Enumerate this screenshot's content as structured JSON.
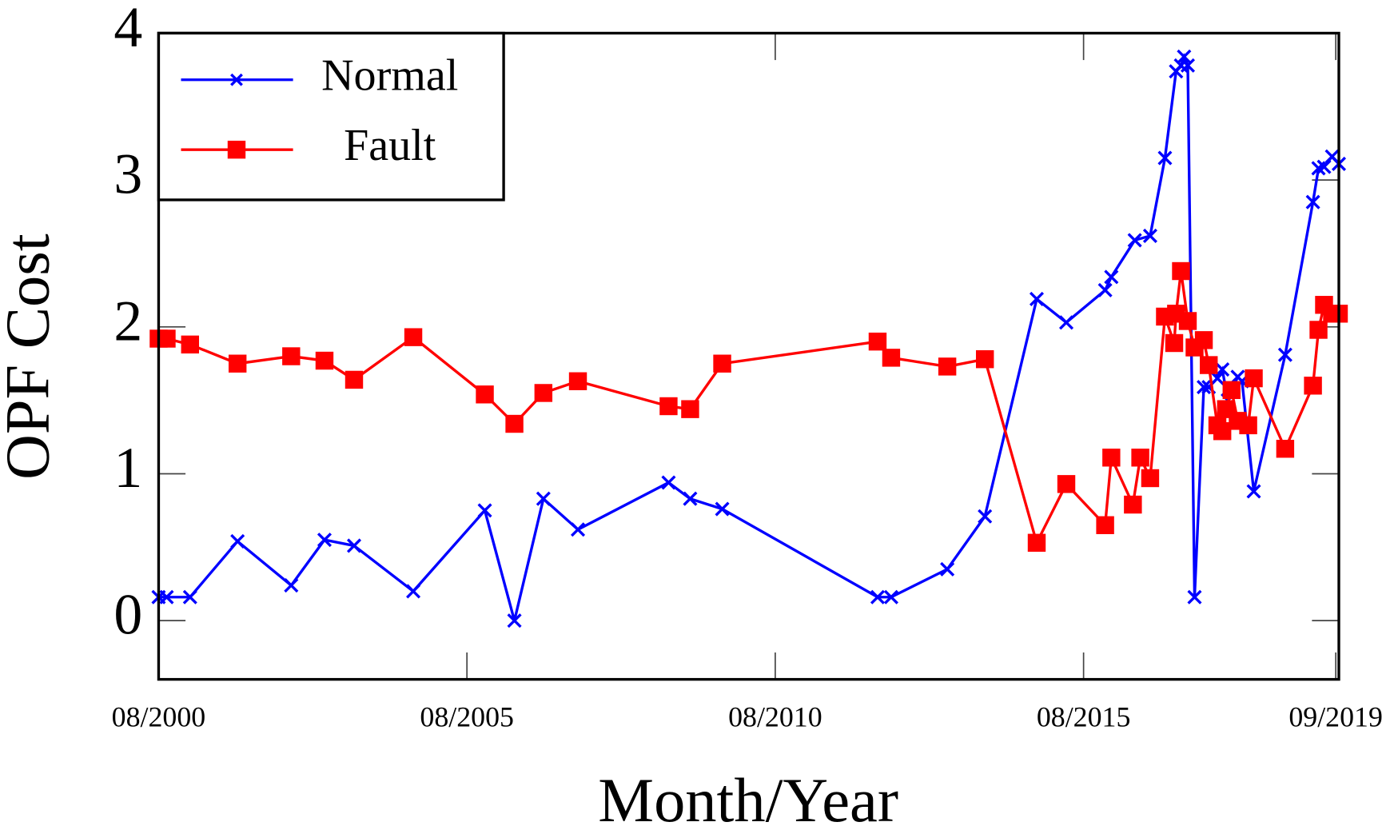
{
  "chart_data": {
    "type": "line",
    "xlabel": "Month/Year",
    "ylabel": "OPF Cost",
    "xlim": [
      2000.58,
      2019.72
    ],
    "ylim": [
      -0.4,
      4
    ],
    "xticks": [
      {
        "value": 2000.58,
        "label": "08/2000"
      },
      {
        "value": 2005.58,
        "label": "08/2005"
      },
      {
        "value": 2010.58,
        "label": "08/2010"
      },
      {
        "value": 2015.58,
        "label": "08/2015"
      },
      {
        "value": 2019.67,
        "label": "09/2019"
      }
    ],
    "yticks": [
      0,
      1,
      2,
      3,
      4
    ],
    "legend": "upper-left",
    "series": [
      {
        "name": "Normal",
        "color": "#0000ff",
        "marker": "x",
        "x": [
          2000.58,
          2000.71,
          2001.09,
          2001.86,
          2002.73,
          2003.27,
          2003.75,
          2004.71,
          2005.87,
          2006.35,
          2006.82,
          2007.38,
          2008.85,
          2009.2,
          2009.72,
          2012.24,
          2012.46,
          2013.37,
          2013.98,
          2014.82,
          2015.3,
          2015.93,
          2016.03,
          2016.41,
          2016.66,
          2016.9,
          2017.08,
          2017.16,
          2017.21,
          2017.27,
          2017.38,
          2017.53,
          2017.61,
          2017.75,
          2017.83,
          2017.92,
          2018.08,
          2018.15,
          2018.34,
          2018.85,
          2019.3,
          2019.39,
          2019.48,
          2019.61,
          2019.72
        ],
        "values": [
          0.16,
          0.16,
          0.16,
          0.54,
          0.24,
          0.55,
          0.51,
          0.2,
          0.75,
          0.0,
          0.83,
          0.62,
          0.94,
          0.83,
          0.76,
          0.16,
          0.16,
          0.35,
          0.71,
          2.19,
          2.03,
          2.25,
          2.34,
          2.59,
          2.62,
          3.15,
          3.74,
          3.78,
          3.84,
          3.78,
          0.16,
          1.59,
          1.59,
          1.65,
          1.71,
          1.5,
          1.66,
          1.63,
          0.88,
          1.81,
          2.85,
          3.08,
          3.09,
          3.16,
          3.11
        ]
      },
      {
        "name": "Fault",
        "color": "#ff0000",
        "marker": "square",
        "x": [
          2000.58,
          2000.71,
          2001.09,
          2001.86,
          2002.73,
          2003.27,
          2003.75,
          2004.71,
          2005.87,
          2006.35,
          2006.82,
          2007.38,
          2008.85,
          2009.2,
          2009.72,
          2012.24,
          2012.46,
          2013.37,
          2013.98,
          2014.82,
          2015.3,
          2015.93,
          2016.03,
          2016.38,
          2016.5,
          2016.66,
          2016.9,
          2017.05,
          2017.08,
          2017.16,
          2017.27,
          2017.38,
          2017.53,
          2017.61,
          2017.75,
          2017.83,
          2017.89,
          2017.98,
          2018.08,
          2018.25,
          2018.34,
          2018.85,
          2019.3,
          2019.39,
          2019.48,
          2019.61,
          2019.72
        ],
        "values": [
          1.92,
          1.92,
          1.88,
          1.75,
          1.8,
          1.77,
          1.64,
          1.93,
          1.54,
          1.34,
          1.55,
          1.63,
          1.46,
          1.44,
          1.75,
          1.9,
          1.79,
          1.73,
          1.78,
          0.53,
          0.93,
          0.65,
          1.11,
          0.79,
          1.11,
          0.97,
          2.07,
          1.89,
          2.09,
          2.38,
          2.04,
          1.86,
          1.91,
          1.74,
          1.33,
          1.29,
          1.44,
          1.57,
          1.36,
          1.33,
          1.65,
          1.17,
          1.6,
          1.98,
          2.15,
          2.09,
          2.09
        ]
      }
    ]
  }
}
